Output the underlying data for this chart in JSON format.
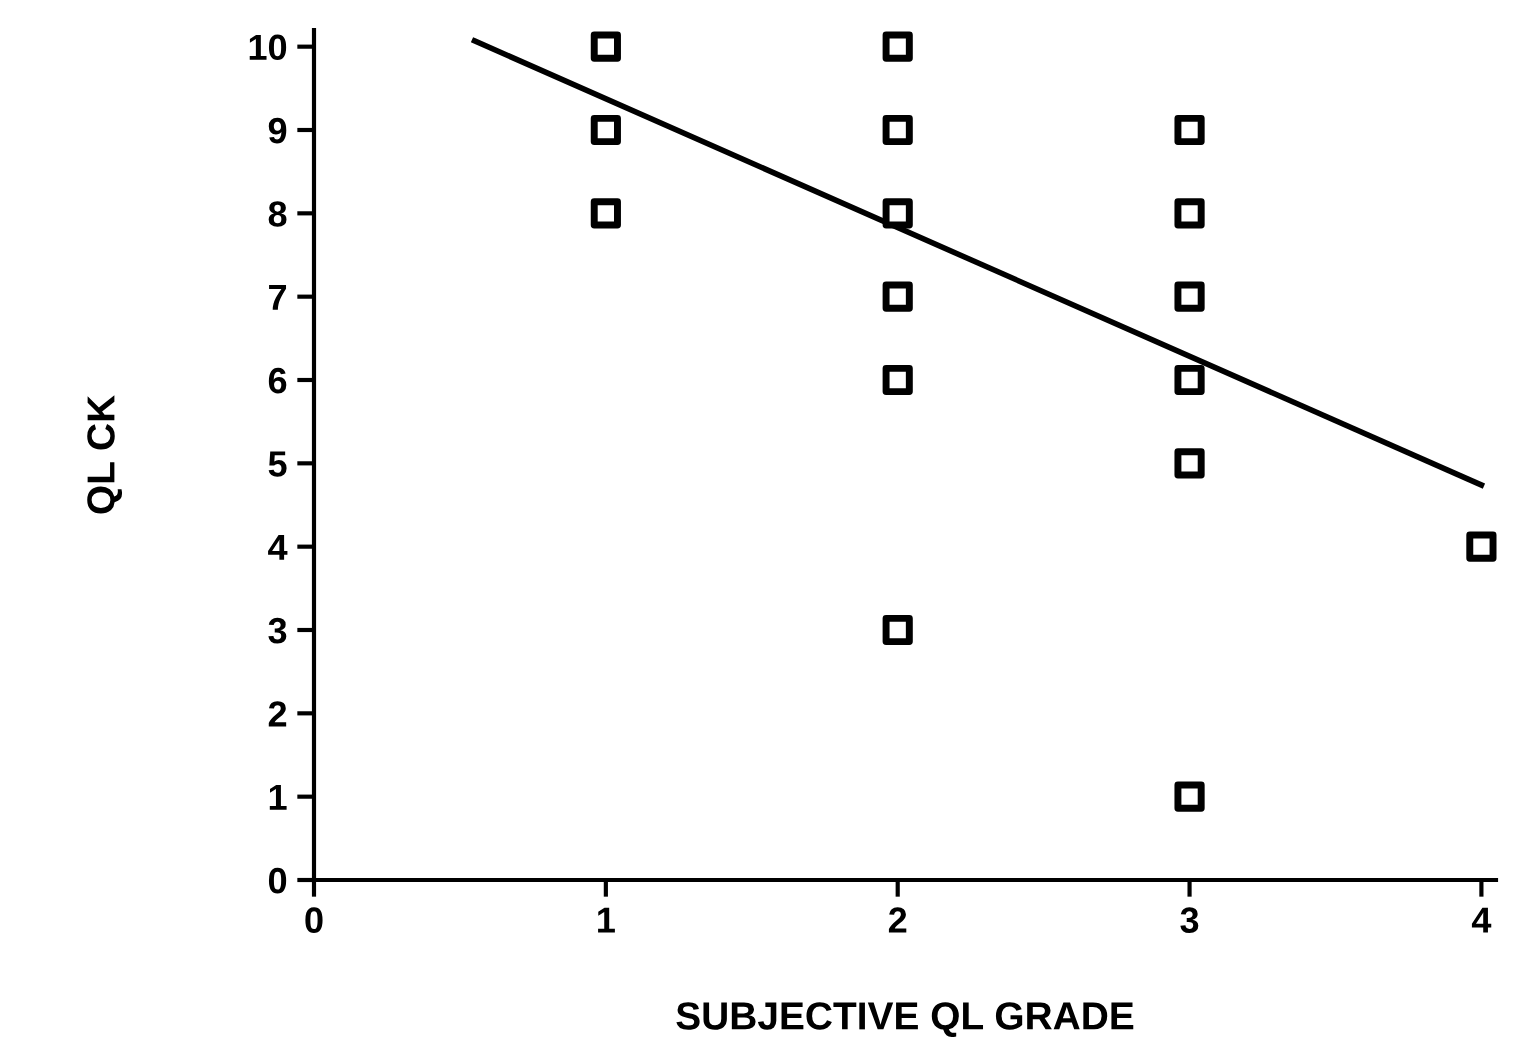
{
  "chart_data": {
    "type": "scatter",
    "xlabel": "SUBJECTIVE QL GRADE",
    "ylabel": "QL CK",
    "series": [
      {
        "color": "#000000",
        "marker": "square",
        "x": [
          1,
          1,
          1,
          2,
          2,
          2,
          2,
          2,
          2,
          3,
          3,
          3,
          3,
          3,
          3,
          4
        ],
        "values": [
          10,
          9,
          8,
          10,
          9,
          8,
          7,
          6,
          3,
          9,
          8,
          7,
          6,
          5,
          1,
          4
        ]
      },
      {
        "type": "line",
        "color": "#000000",
        "marker": "none",
        "line_style": "solid",
        "x": [
          0.55,
          4
        ],
        "values": [
          10.07,
          4.74
        ]
      }
    ],
    "xlim": [
      0,
      4.05
    ],
    "ylim": [
      0,
      10.2
    ],
    "xticks": [
      0,
      1,
      2,
      3,
      4
    ],
    "yticks": [
      0,
      1,
      2,
      3,
      4,
      5,
      6,
      7,
      8,
      9,
      10
    ],
    "grid": false
  }
}
